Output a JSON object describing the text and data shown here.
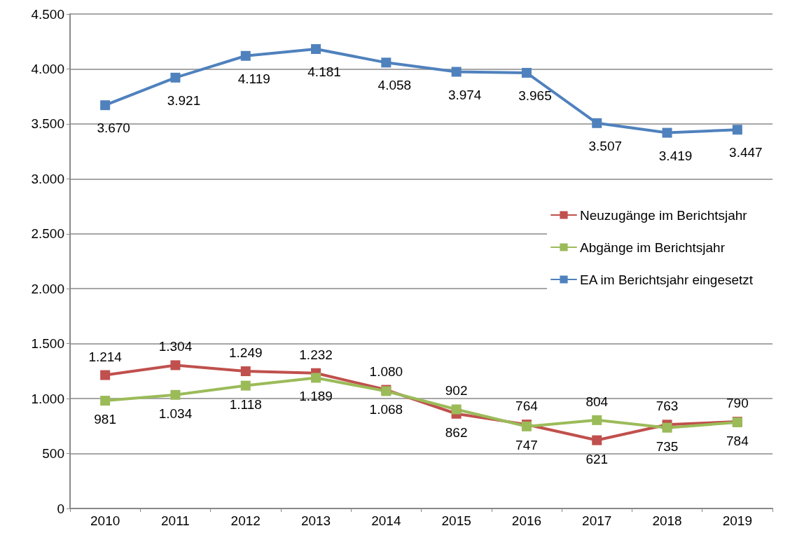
{
  "chart_data": {
    "type": "line",
    "categories": [
      "2010",
      "2011",
      "2012",
      "2013",
      "2014",
      "2015",
      "2016",
      "2017",
      "2018",
      "2019"
    ],
    "series": [
      {
        "name": "Neuzugänge im Berichtsjahr",
        "color": "#c0504d",
        "values": [
          1214,
          1304,
          1249,
          1232,
          1080,
          862,
          764,
          621,
          763,
          790
        ],
        "value_labels": [
          "1.214",
          "1.304",
          "1.249",
          "1.232",
          "1.080",
          "862",
          "764",
          "621",
          "763",
          "790"
        ]
      },
      {
        "name": "Abgänge im Berichtsjahr",
        "color": "#9bbb59",
        "values": [
          981,
          1034,
          1118,
          1189,
          1068,
          902,
          747,
          804,
          735,
          784
        ],
        "value_labels": [
          "981",
          "1.034",
          "1.118",
          "1.189",
          "1.068",
          "902",
          "747",
          "804",
          "735",
          "784"
        ]
      },
      {
        "name": "EA im Berichtsjahr eingesetzt",
        "color": "#4f81bd",
        "values": [
          3670,
          3921,
          4119,
          4181,
          4058,
          3974,
          3965,
          3507,
          3419,
          3447
        ],
        "value_labels": [
          "3.670",
          "3.921",
          "4.119",
          "4.181",
          "4.058",
          "3.974",
          "3.965",
          "3.507",
          "3.419",
          "3.447"
        ]
      }
    ],
    "ylim": [
      0,
      4500
    ],
    "yticks": [
      {
        "value": 0,
        "label": "0"
      },
      {
        "value": 500,
        "label": "500"
      },
      {
        "value": 1000,
        "label": "1.000"
      },
      {
        "value": 1500,
        "label": "1.500"
      },
      {
        "value": 2000,
        "label": "2.000"
      },
      {
        "value": 2500,
        "label": "2.500"
      },
      {
        "value": 3000,
        "label": "3.000"
      },
      {
        "value": 3500,
        "label": "3.500"
      },
      {
        "value": 4000,
        "label": "4.000"
      },
      {
        "value": 4500,
        "label": "4.500"
      }
    ],
    "grid": "y",
    "legend": "right",
    "marker": "square",
    "line_style": "solid"
  }
}
